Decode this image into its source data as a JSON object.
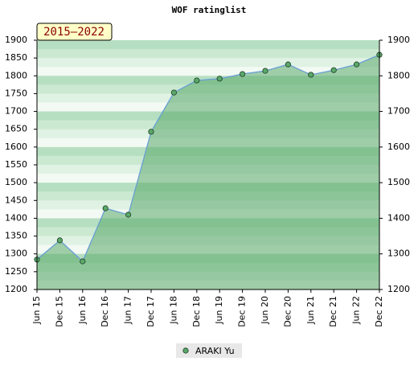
{
  "chart_data": {
    "type": "area",
    "title": "WOF ratinglist",
    "annotation": "2015–2022",
    "categories": [
      "Jun 15",
      "Dec 15",
      "Jun 16",
      "Dec 16",
      "Jun 17",
      "Dec 17",
      "Jun 18",
      "Dec 18",
      "Jun 19",
      "Dec 19",
      "Jun 20",
      "Dec 20",
      "Jun 21",
      "Dec 21",
      "Jun 22",
      "Dec 22"
    ],
    "series": [
      {
        "name": "ARAKI Yu",
        "color": "#5aa86a",
        "values": [
          1284,
          1338,
          1279,
          1428,
          1410,
          1643,
          1753,
          1787,
          1792,
          1805,
          1814,
          1832,
          1803,
          1816,
          1832,
          1859
        ]
      }
    ],
    "ylim": [
      1200,
      1900
    ],
    "yticks": [
      1200,
      1250,
      1300,
      1350,
      1400,
      1450,
      1500,
      1550,
      1600,
      1650,
      1700,
      1750,
      1800,
      1850,
      1900
    ],
    "y2lim": [
      1200,
      1900
    ],
    "y2ticks": [
      1200,
      1300,
      1400,
      1500,
      1600,
      1700,
      1800,
      1900
    ],
    "legend": "bottom"
  }
}
